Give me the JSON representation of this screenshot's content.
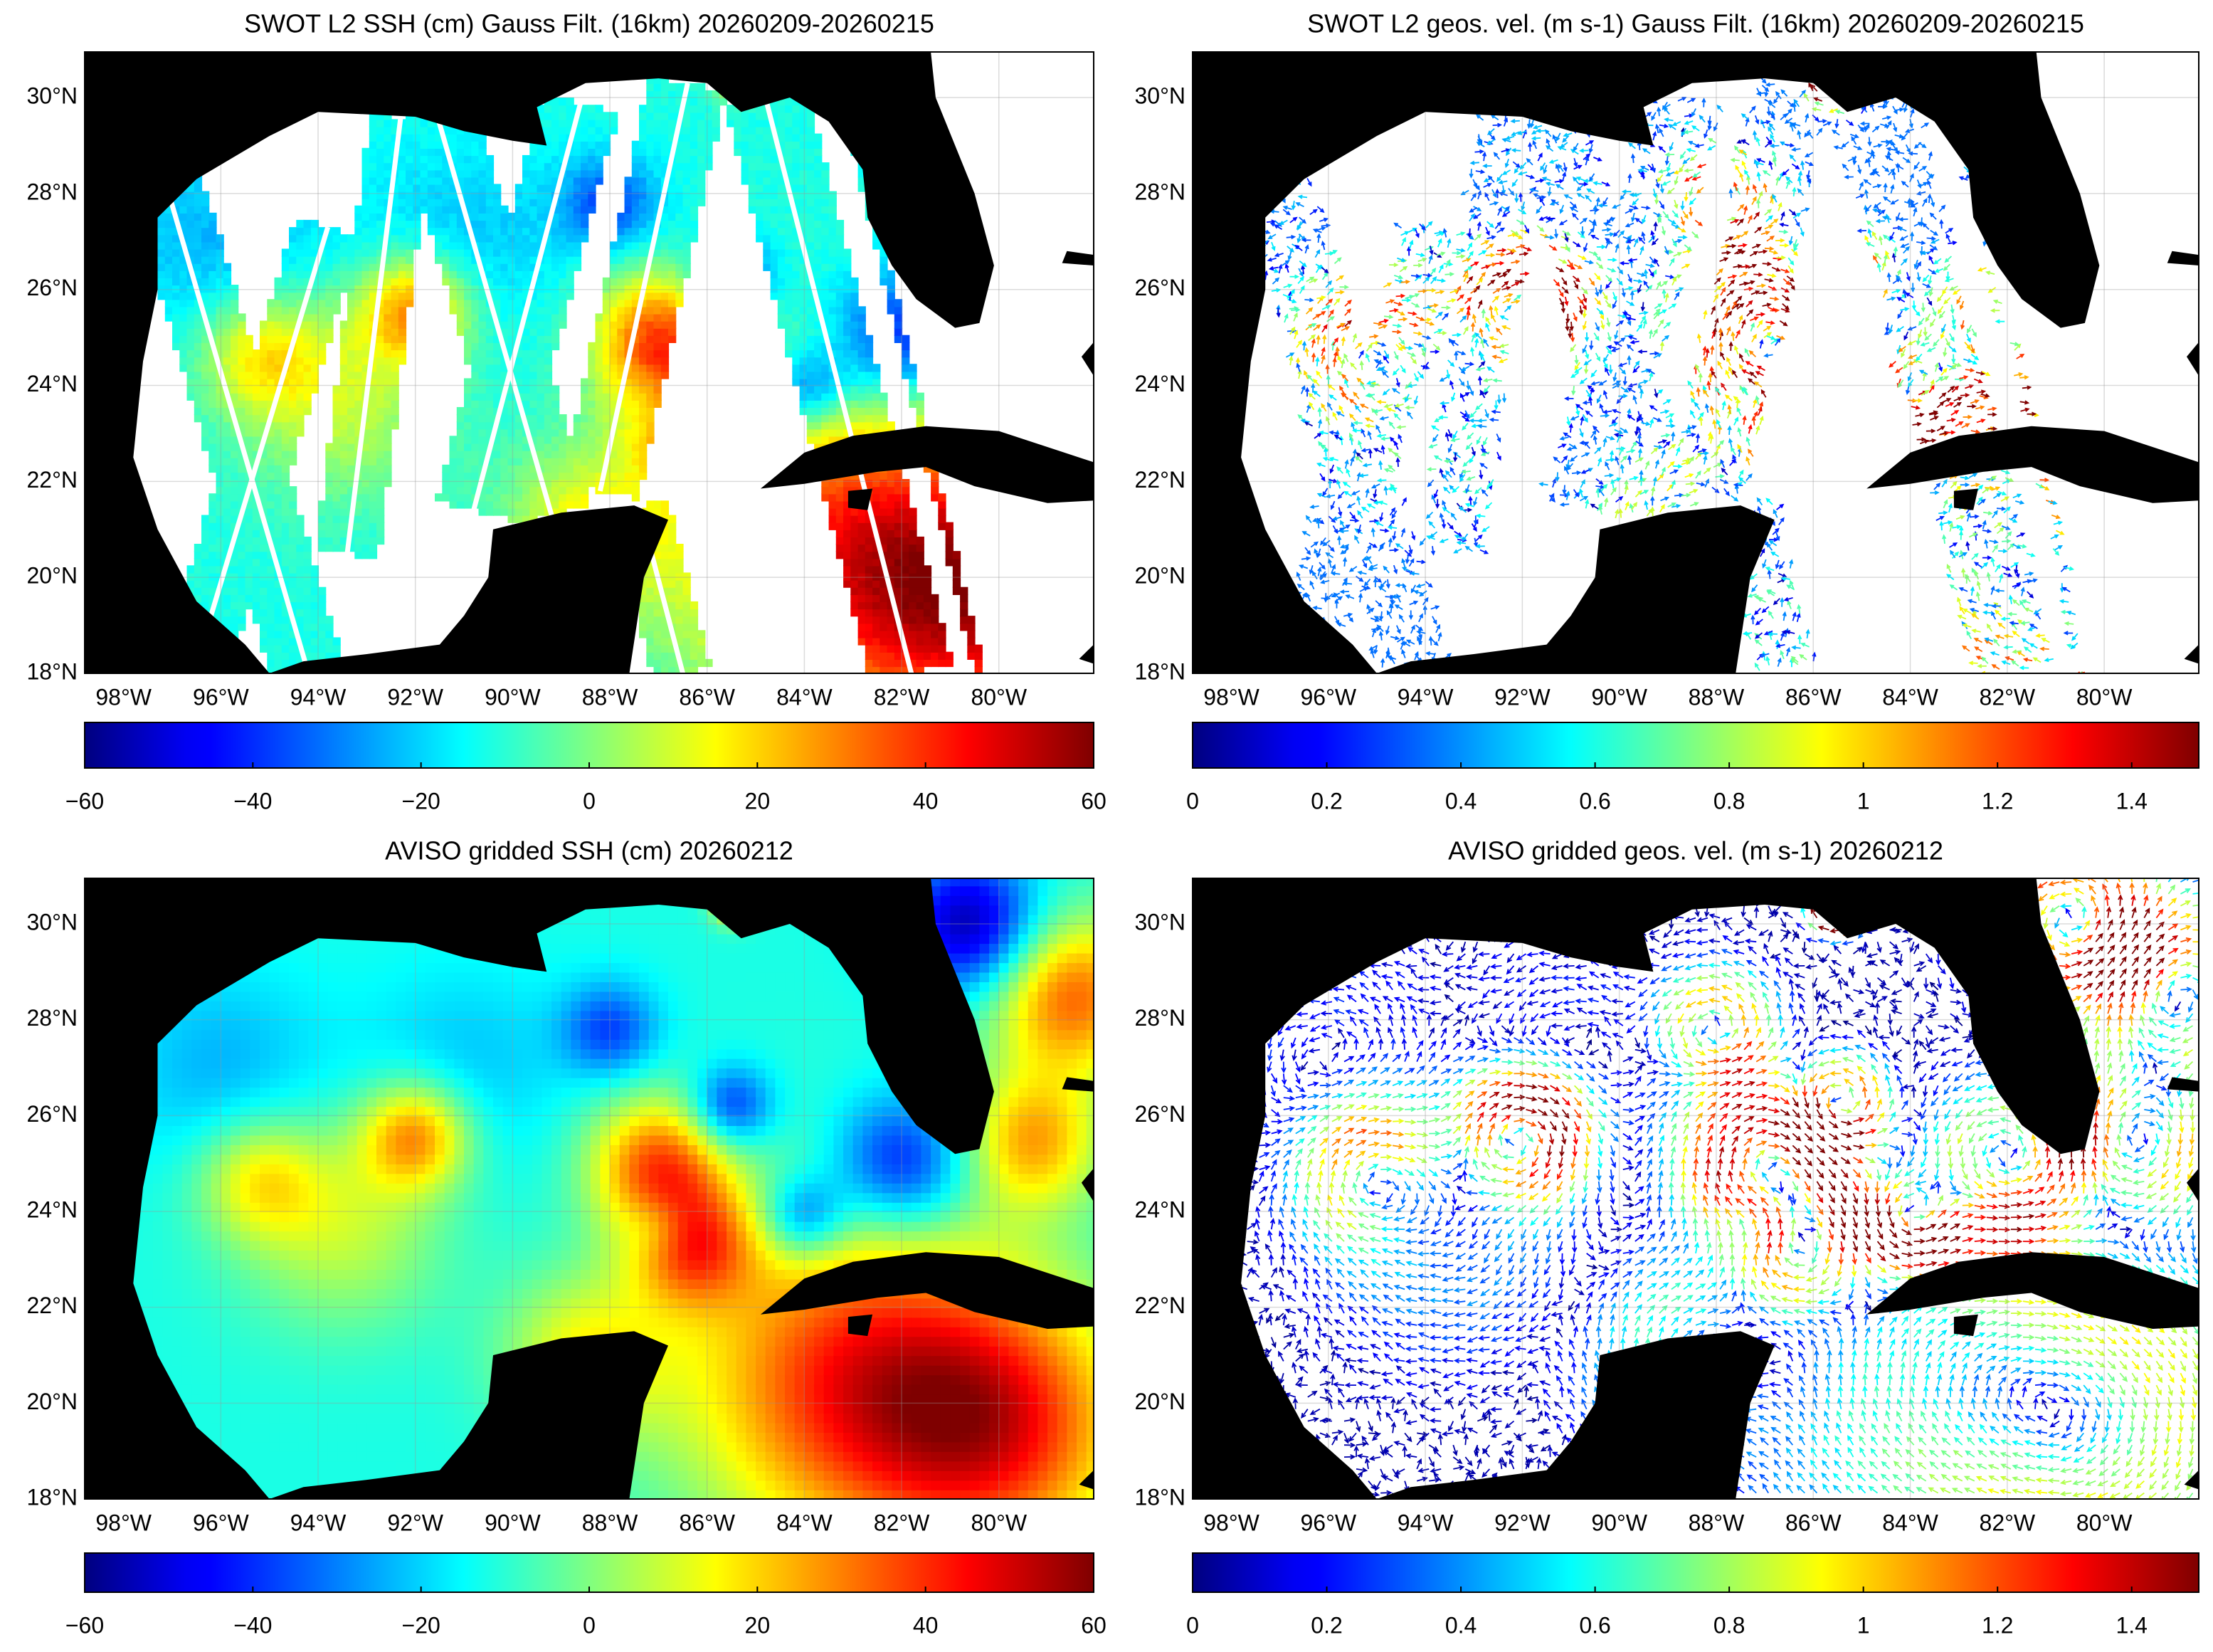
{
  "chart_data": [
    {
      "type": "heatmap",
      "title": "SWOT L2 SSH (cm) Gauss Filt. (16km) 20260209-20260215",
      "xlim": [
        -98.8,
        -78.05
      ],
      "ylim": [
        18,
        30.95
      ],
      "xticks": [
        {
          "value": -98,
          "label": "98°W"
        },
        {
          "value": -96,
          "label": "96°W"
        },
        {
          "value": -94,
          "label": "94°W"
        },
        {
          "value": -92,
          "label": "92°W"
        },
        {
          "value": -90,
          "label": "90°W"
        },
        {
          "value": -88,
          "label": "88°W"
        },
        {
          "value": -86,
          "label": "86°W"
        },
        {
          "value": -84,
          "label": "84°W"
        },
        {
          "value": -82,
          "label": "82°W"
        },
        {
          "value": -80,
          "label": "80°W"
        }
      ],
      "yticks": [
        {
          "value": 18,
          "label": "18°N"
        },
        {
          "value": 20,
          "label": "20°N"
        },
        {
          "value": 22,
          "label": "22°N"
        },
        {
          "value": 24,
          "label": "24°N"
        },
        {
          "value": 26,
          "label": "26°N"
        },
        {
          "value": 28,
          "label": "28°N"
        },
        {
          "value": 30,
          "label": "30°N"
        }
      ],
      "grid": true,
      "colorbar": {
        "colormap": "jet",
        "lim": [
          -60,
          60
        ],
        "ticks": [
          {
            "value": -60,
            "label": "−60"
          },
          {
            "value": -40,
            "label": "−40"
          },
          {
            "value": -20,
            "label": "−20"
          },
          0,
          20,
          40,
          60
        ]
      }
    },
    {
      "type": "quiver",
      "title": "SWOT L2 geos. vel. (m s-1) Gauss Filt. (16km) 20260209-20260215",
      "xlim": [
        -98.8,
        -78.05
      ],
      "ylim": [
        18,
        30.95
      ],
      "xticks": [
        {
          "value": -98,
          "label": "98°W"
        },
        {
          "value": -96,
          "label": "96°W"
        },
        {
          "value": -94,
          "label": "94°W"
        },
        {
          "value": -92,
          "label": "92°W"
        },
        {
          "value": -90,
          "label": "90°W"
        },
        {
          "value": -88,
          "label": "88°W"
        },
        {
          "value": -86,
          "label": "86°W"
        },
        {
          "value": -84,
          "label": "84°W"
        },
        {
          "value": -82,
          "label": "82°W"
        },
        {
          "value": -80,
          "label": "80°W"
        }
      ],
      "yticks": [
        {
          "value": 18,
          "label": "18°N"
        },
        {
          "value": 20,
          "label": "20°N"
        },
        {
          "value": 22,
          "label": "22°N"
        },
        {
          "value": 24,
          "label": "24°N"
        },
        {
          "value": 26,
          "label": "26°N"
        },
        {
          "value": 28,
          "label": "28°N"
        },
        {
          "value": 30,
          "label": "30°N"
        }
      ],
      "grid": true,
      "colorbar": {
        "colormap": "jet",
        "lim": [
          0,
          1.5
        ],
        "ticks": [
          0,
          0.2,
          0.4,
          0.6,
          0.8,
          1,
          1.2,
          1.4
        ]
      }
    },
    {
      "type": "heatmap",
      "title": "AVISO gridded SSH (cm) 20260212",
      "xlim": [
        -98.8,
        -78.05
      ],
      "ylim": [
        18,
        30.95
      ],
      "xticks": [
        {
          "value": -98,
          "label": "98°W"
        },
        {
          "value": -96,
          "label": "96°W"
        },
        {
          "value": -94,
          "label": "94°W"
        },
        {
          "value": -92,
          "label": "92°W"
        },
        {
          "value": -90,
          "label": "90°W"
        },
        {
          "value": -88,
          "label": "88°W"
        },
        {
          "value": -86,
          "label": "86°W"
        },
        {
          "value": -84,
          "label": "84°W"
        },
        {
          "value": -82,
          "label": "82°W"
        },
        {
          "value": -80,
          "label": "80°W"
        }
      ],
      "yticks": [
        {
          "value": 18,
          "label": "18°N"
        },
        {
          "value": 20,
          "label": "20°N"
        },
        {
          "value": 22,
          "label": "22°N"
        },
        {
          "value": 24,
          "label": "24°N"
        },
        {
          "value": 26,
          "label": "26°N"
        },
        {
          "value": 28,
          "label": "28°N"
        },
        {
          "value": 30,
          "label": "30°N"
        }
      ],
      "grid": true,
      "colorbar": {
        "colormap": "jet",
        "lim": [
          -60,
          60
        ],
        "ticks": [
          {
            "value": -60,
            "label": "−60"
          },
          {
            "value": -40,
            "label": "−40"
          },
          {
            "value": -20,
            "label": "−20"
          },
          0,
          20,
          40,
          60
        ]
      }
    },
    {
      "type": "quiver",
      "title": "AVISO gridded geos. vel. (m s-1)  20260212",
      "xlim": [
        -98.8,
        -78.05
      ],
      "ylim": [
        18,
        30.95
      ],
      "xticks": [
        {
          "value": -98,
          "label": "98°W"
        },
        {
          "value": -96,
          "label": "96°W"
        },
        {
          "value": -94,
          "label": "94°W"
        },
        {
          "value": -92,
          "label": "92°W"
        },
        {
          "value": -90,
          "label": "90°W"
        },
        {
          "value": -88,
          "label": "88°W"
        },
        {
          "value": -86,
          "label": "86°W"
        },
        {
          "value": -84,
          "label": "84°W"
        },
        {
          "value": -82,
          "label": "82°W"
        },
        {
          "value": -80,
          "label": "80°W"
        }
      ],
      "yticks": [
        {
          "value": 18,
          "label": "18°N"
        },
        {
          "value": 20,
          "label": "20°N"
        },
        {
          "value": 22,
          "label": "22°N"
        },
        {
          "value": 24,
          "label": "24°N"
        },
        {
          "value": 26,
          "label": "26°N"
        },
        {
          "value": 28,
          "label": "28°N"
        },
        {
          "value": 30,
          "label": "30°N"
        }
      ],
      "grid": true,
      "colorbar": {
        "colormap": "jet",
        "lim": [
          0,
          1.5
        ],
        "ticks": [
          0,
          0.2,
          0.4,
          0.6,
          0.8,
          1,
          1.2,
          1.4
        ]
      }
    }
  ]
}
